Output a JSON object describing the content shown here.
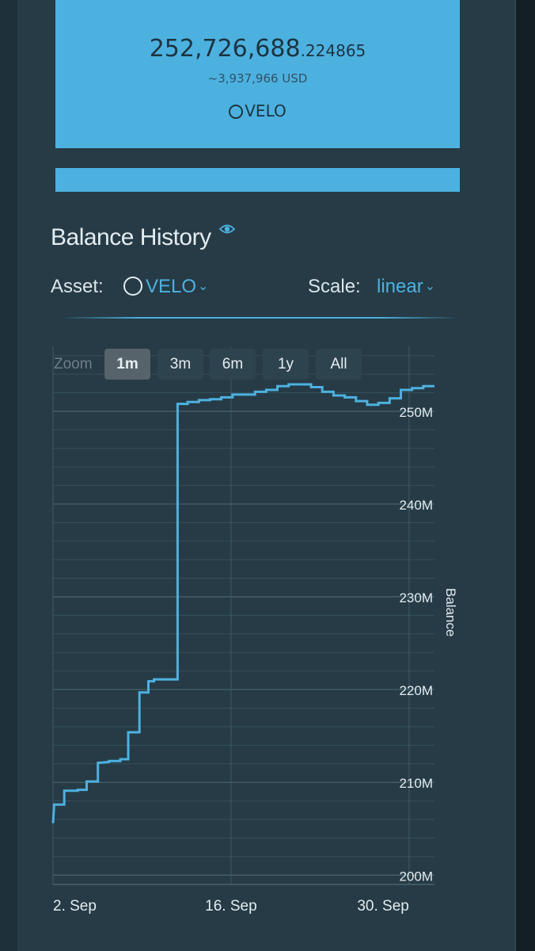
{
  "balance": {
    "amount_main": "252,726,688",
    "amount_decimals": ".224865",
    "usd_value": "~3,937,966 USD",
    "asset": "VELO"
  },
  "section_title": "Balance History",
  "controls": {
    "asset_label": "Asset:",
    "asset_value": "VELO",
    "scale_label": "Scale:",
    "scale_value": "linear"
  },
  "zoom": {
    "label": "Zoom",
    "buttons": [
      "1m",
      "3m",
      "6m",
      "1y",
      "All"
    ],
    "active": "1m"
  },
  "colors": {
    "accent": "#4db1e0",
    "background": "#263b46",
    "grid": "#3c5560"
  },
  "chart_data": {
    "type": "line",
    "step": true,
    "ylabel": "Balance",
    "ylim": [
      199000000,
      257000000
    ],
    "y_ticks": [
      {
        "value": 200000000,
        "label": "200M"
      },
      {
        "value": 210000000,
        "label": "210M"
      },
      {
        "value": 220000000,
        "label": "220M"
      },
      {
        "value": 230000000,
        "label": "230M"
      },
      {
        "value": 240000000,
        "label": "240M"
      },
      {
        "value": 250000000,
        "label": "250M"
      }
    ],
    "x_ticks": [
      {
        "value": 2,
        "label": "2. Sep"
      },
      {
        "value": 16,
        "label": "16. Sep"
      },
      {
        "value": 30,
        "label": "30. Sep"
      }
    ],
    "xlim": [
      2,
      32
    ],
    "series": [
      {
        "color": "#4db1e0",
        "points": [
          [
            2.0,
            205.6
          ],
          [
            2.1,
            207.6
          ],
          [
            3.0,
            207.6
          ],
          [
            3.0,
            209.1
          ],
          [
            4.2,
            209.1
          ],
          [
            4.2,
            209.2
          ],
          [
            5.0,
            209.2
          ],
          [
            5.0,
            210.1
          ],
          [
            6.0,
            210.1
          ],
          [
            6.0,
            212.1
          ],
          [
            7.0,
            212.2
          ],
          [
            7.0,
            212.3
          ],
          [
            8.0,
            212.3
          ],
          [
            8.0,
            212.5
          ],
          [
            8.7,
            212.5
          ],
          [
            8.7,
            215.4
          ],
          [
            9.7,
            215.4
          ],
          [
            9.7,
            219.7
          ],
          [
            10.5,
            219.7
          ],
          [
            10.5,
            220.9
          ],
          [
            11.0,
            220.9
          ],
          [
            11.0,
            221.1
          ],
          [
            13.1,
            221.1
          ],
          [
            13.1,
            250.8
          ],
          [
            14.0,
            250.8
          ],
          [
            14.0,
            251.0
          ],
          [
            15.0,
            251.0
          ],
          [
            15.0,
            251.2
          ],
          [
            16.0,
            251.2
          ],
          [
            16.0,
            251.3
          ],
          [
            17.0,
            251.3
          ],
          [
            17.0,
            251.5
          ],
          [
            18.0,
            251.5
          ],
          [
            18.0,
            251.8
          ],
          [
            20.0,
            251.8
          ],
          [
            20.0,
            252.1
          ],
          [
            21.0,
            252.1
          ],
          [
            21.0,
            252.3
          ],
          [
            22.0,
            252.3
          ],
          [
            22.0,
            252.7
          ],
          [
            23.0,
            252.7
          ],
          [
            23.0,
            252.9
          ],
          [
            25.0,
            252.9
          ],
          [
            25.0,
            252.6
          ],
          [
            26.0,
            252.6
          ],
          [
            26.0,
            252.1
          ],
          [
            27.0,
            252.1
          ],
          [
            27.0,
            251.7
          ],
          [
            28.0,
            251.7
          ],
          [
            28.0,
            251.5
          ],
          [
            29.0,
            251.5
          ],
          [
            29.0,
            251.1
          ],
          [
            30.0,
            251.1
          ],
          [
            30.0,
            250.7
          ],
          [
            31.0,
            250.7
          ],
          [
            31.0,
            250.9
          ],
          [
            32.0,
            250.9
          ],
          [
            32.0,
            251.4
          ],
          [
            33.0,
            251.4
          ],
          [
            33.0,
            252.3
          ],
          [
            34.0,
            252.3
          ],
          [
            34.0,
            252.5
          ],
          [
            35.0,
            252.5
          ],
          [
            35.0,
            252.7
          ],
          [
            36.0,
            252.7
          ]
        ]
      }
    ]
  }
}
